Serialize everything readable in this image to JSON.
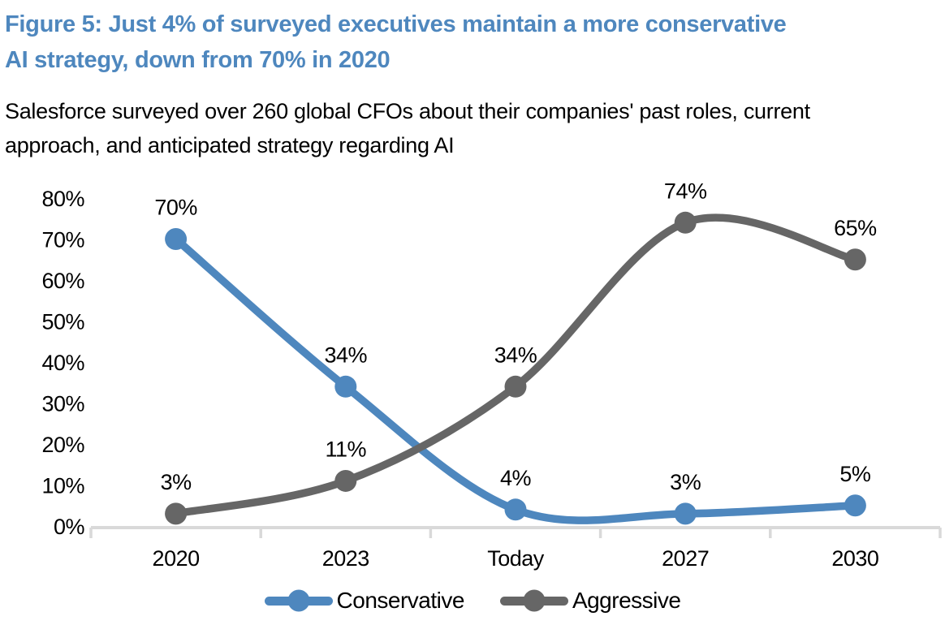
{
  "header": {
    "title": "Figure 5: Just 4% of surveyed executives maintain a more conservative\nAI strategy, down from 70% in 2020",
    "subtitle": "Salesforce  surveyed over 260 global CFOs about their companies' past roles, current\napproach, and anticipated strategy regarding AI"
  },
  "colors": {
    "title_blue": "#4e87be",
    "conservative_blue": "#4e87be",
    "aggressive_gray": "#666666",
    "axis_gray": "#d9d9d9",
    "label_black": "#000000"
  },
  "chart_data": {
    "type": "line",
    "line_style": "smooth",
    "markers": "circle",
    "grid": false,
    "legend_position": "bottom",
    "categories": [
      "2020",
      "2023",
      "Today",
      "2027",
      "2030"
    ],
    "series": [
      {
        "name": "Conservative",
        "color": "#4e87be",
        "values": [
          70,
          34,
          4,
          3,
          5
        ]
      },
      {
        "name": "Aggressive",
        "color": "#666666",
        "values": [
          3,
          11,
          34,
          74,
          65
        ]
      }
    ],
    "data_label_format": "{v}%",
    "ylim": [
      0,
      80
    ],
    "ytick_step": 10,
    "ytick_labels": [
      "0%",
      "10%",
      "20%",
      "30%",
      "40%",
      "50%",
      "60%",
      "70%",
      "80%"
    ]
  },
  "legend": {
    "items": [
      {
        "label": "Conservative",
        "color": "#4e87be"
      },
      {
        "label": "Aggressive",
        "color": "#666666"
      }
    ]
  }
}
